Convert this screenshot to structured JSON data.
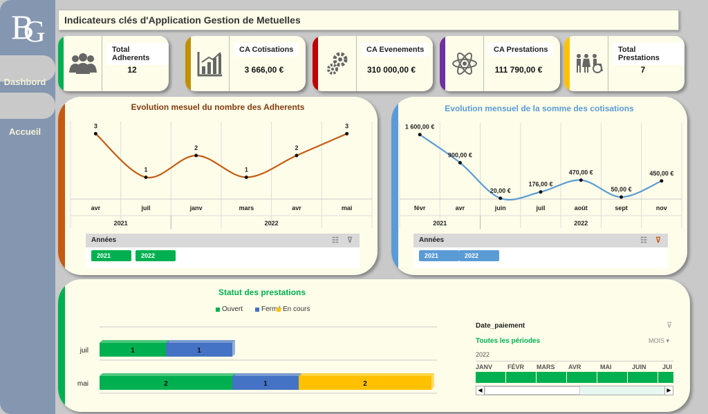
{
  "header": {
    "title": "Indicateurs clés d'Application Gestion de Metuelles"
  },
  "sidebar": {
    "logo_letters": [
      "B",
      "G"
    ],
    "nav": [
      {
        "label": "Dashbord"
      },
      {
        "label": "Accueil"
      }
    ]
  },
  "kpis": [
    {
      "label": "Total Adherents",
      "value": "12",
      "icon": "people-icon",
      "color": "#00b050"
    },
    {
      "label": "CA Cotisations",
      "value": "3 666,00 €",
      "icon": "bar-chart-icon",
      "color": "#bf9000"
    },
    {
      "label": "CA Evenements",
      "value": "310 000,00 €",
      "icon": "gears-icon",
      "color": "#c00000"
    },
    {
      "label": "CA Prestations",
      "value": "111 790,00 €",
      "icon": "atom-icon",
      "color": "#7030a0"
    },
    {
      "label": "Total Prestations",
      "value": "7",
      "icon": "family-icon",
      "color": "#ffc000"
    }
  ],
  "adherents_panel": {
    "title": "Evolution mesuel du nombre des Adherents",
    "accent": "#c55a11",
    "slicer": {
      "title": "Années",
      "items": [
        "2021",
        "2022"
      ],
      "chip_color": "#00b050"
    }
  },
  "cotisations_panel": {
    "title": "Evolution mensuel de la somme des cotisations",
    "accent": "#5b9bd5",
    "slicer": {
      "title": "Années",
      "items": [
        "2021",
        "2022"
      ],
      "chip_color": "#5b9bd5"
    }
  },
  "prestations_panel": {
    "title": "Statut des prestations",
    "accent": "#00b050",
    "timeline": {
      "field": "Date_paiement",
      "period_label": "Toutes les périodes",
      "level": "MOIS",
      "year": "2022",
      "months": [
        "JANV",
        "FÉVR",
        "MARS",
        "AVR",
        "MAI",
        "JUIN",
        "JUI"
      ]
    }
  },
  "chart_data": [
    {
      "type": "line",
      "title": "Evolution mesuel du nombre des Adherents",
      "categories": [
        "avr",
        "juil",
        "janv",
        "mars",
        "avr",
        "mai"
      ],
      "groups": [
        {
          "label": "2021",
          "span": 2
        },
        {
          "label": "2022",
          "span": 4
        }
      ],
      "values": [
        3,
        1,
        2,
        1,
        2,
        3
      ],
      "data_labels": [
        "3",
        "1",
        "2",
        "1",
        "2",
        "3"
      ],
      "ylim": [
        0,
        3.3
      ],
      "color": "#c55a11",
      "grid": true
    },
    {
      "type": "line",
      "title": "Evolution mensuel de la somme des cotisations",
      "categories": [
        "févr",
        "avr",
        "juin",
        "juil",
        "août",
        "sept",
        "nov"
      ],
      "groups": [
        {
          "label": "2021",
          "span": 2
        },
        {
          "label": "2022",
          "span": 5
        }
      ],
      "values": [
        1600,
        900,
        20,
        176,
        470,
        50,
        450
      ],
      "data_labels": [
        "1 600,00 €",
        "900,00 €",
        "20,00 €",
        "176,00 €",
        "470,00 €",
        "50,00 €",
        "450,00 €"
      ],
      "ylim": [
        0,
        1750
      ],
      "color": "#5b9bd5",
      "grid": true
    },
    {
      "type": "bar",
      "title": "Statut des prestations",
      "orientation": "horizontal",
      "stacked": true,
      "categories": [
        "juil",
        "mai"
      ],
      "series": [
        {
          "name": "Ouvert",
          "values": [
            1,
            2
          ],
          "color": "#00b050"
        },
        {
          "name": "Fermé",
          "values": [
            1,
            1
          ],
          "color": "#4472c4"
        },
        {
          "name": "En cours",
          "values": [
            0,
            2
          ],
          "color": "#ffc000"
        }
      ],
      "legend": "top",
      "xlim": [
        0,
        5
      ]
    }
  ]
}
